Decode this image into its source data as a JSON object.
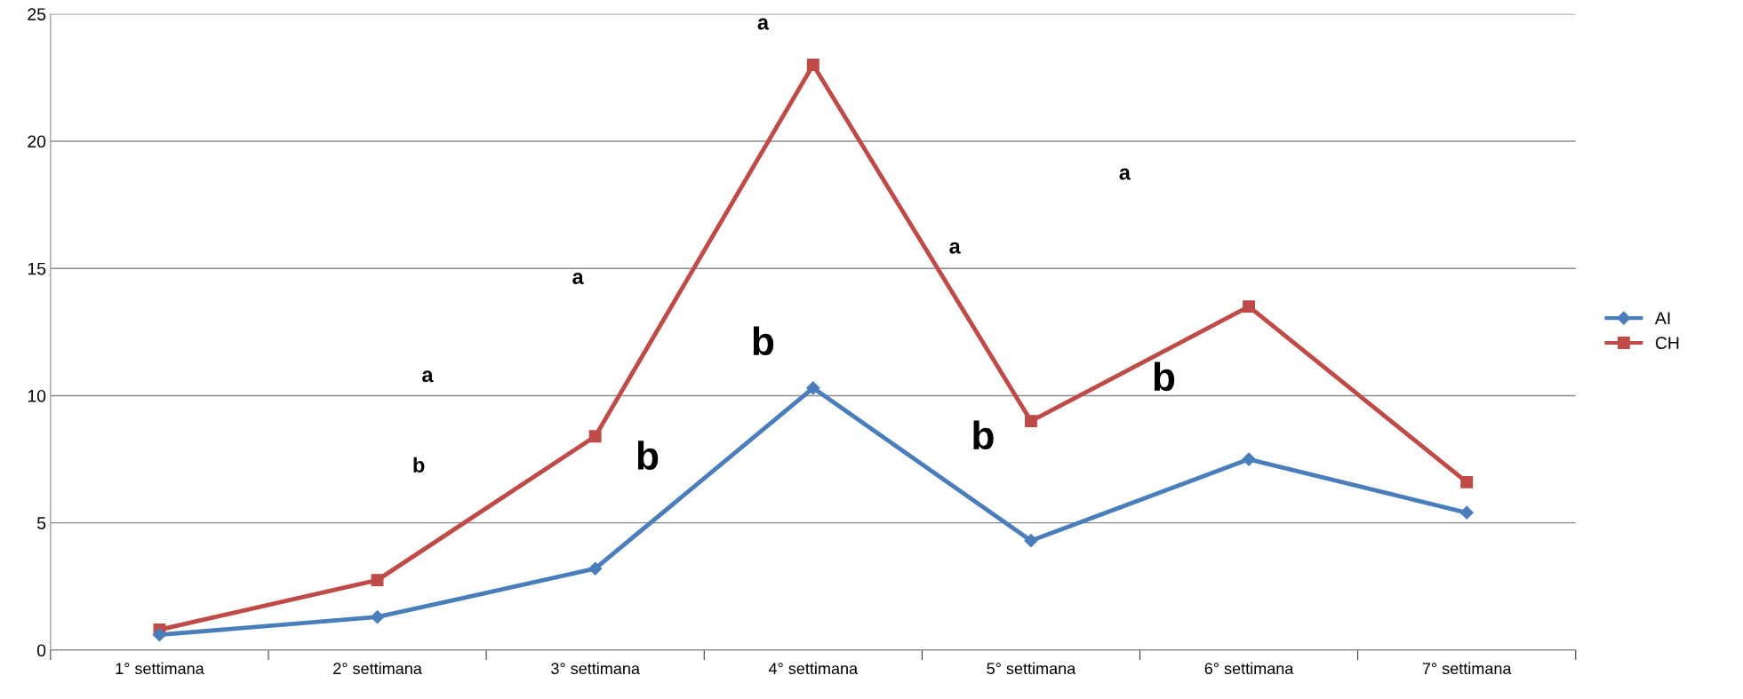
{
  "chart_data": {
    "type": "line",
    "categories": [
      "1° settimana",
      "2° settimana",
      "3° settimana",
      "4° settimana",
      "5° settimana",
      "6° settimana",
      "7° settimana"
    ],
    "series": [
      {
        "name": "AI",
        "color": "#4a7ebb",
        "marker": "diamond",
        "values": [
          0.6,
          1.3,
          3.2,
          10.3,
          4.3,
          7.5,
          5.4
        ]
      },
      {
        "name": "CH",
        "color": "#be4b48",
        "marker": "square",
        "values": [
          0.8,
          2.75,
          8.4,
          23.0,
          9.0,
          13.5,
          6.6
        ]
      }
    ],
    "ylim": [
      0,
      25
    ],
    "yticks": [
      0,
      5,
      10,
      15,
      20,
      25
    ],
    "grid": "y",
    "legend": "right",
    "line_style": "solid",
    "annotations": [
      "a",
      "a",
      "a",
      "a",
      "b",
      "a",
      "b",
      "b",
      "b",
      "b"
    ]
  }
}
